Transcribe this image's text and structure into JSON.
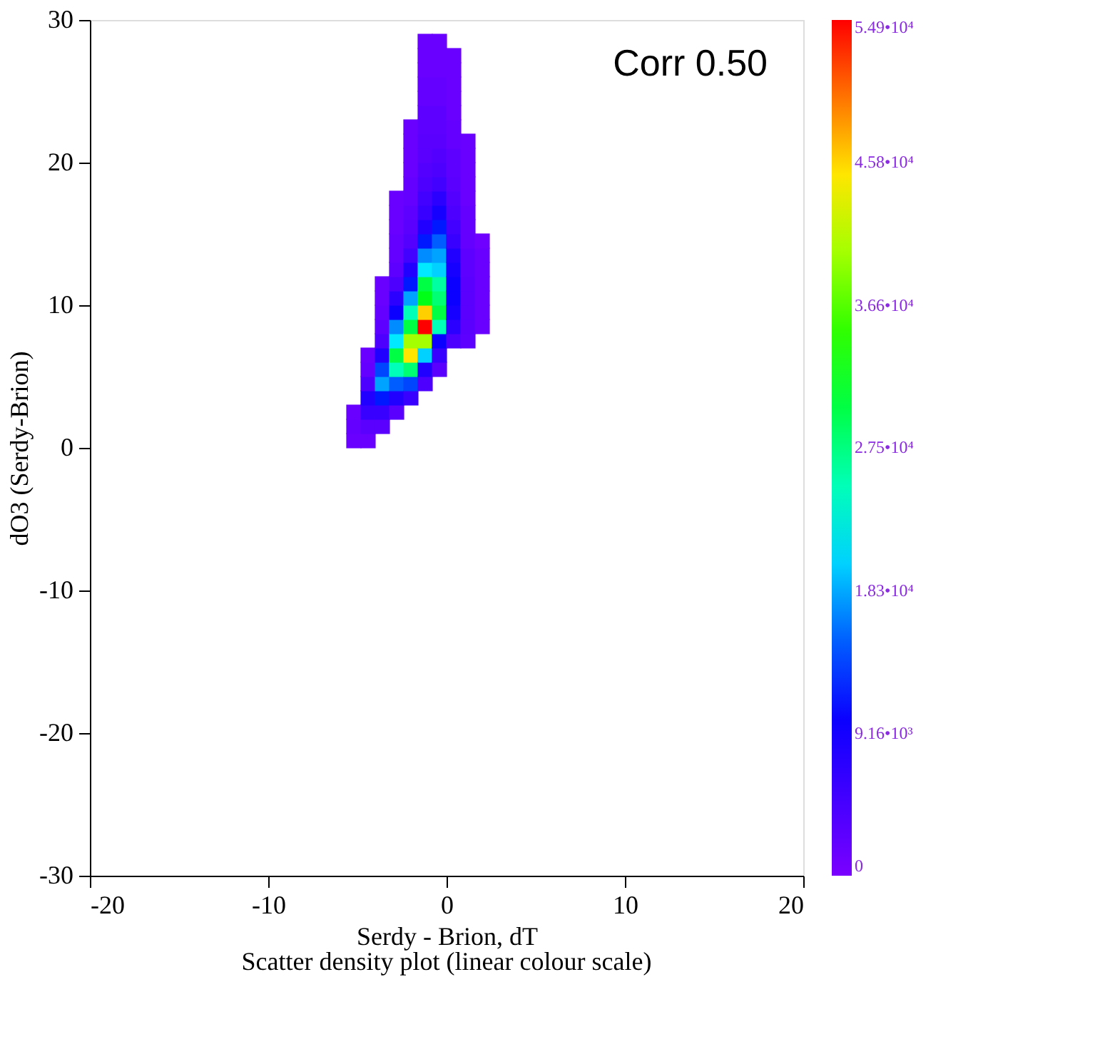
{
  "chart_data": {
    "type": "scatter",
    "xlabel": "Serdy - Brion, dT",
    "ylabel": "dO3 (Serdy-Brion)",
    "annotations": [
      "Corr 0.50",
      "Scatter density plot (linear colour scale)"
    ],
    "xlim": [
      -20,
      20
    ],
    "xticks": [
      -20,
      -10,
      0,
      10,
      20
    ],
    "ylim": [
      -30,
      30
    ],
    "yticks": [
      -30,
      -20,
      -10,
      0,
      10,
      20,
      30
    ],
    "clim": [
      0,
      54900
    ],
    "cticks": [
      0,
      {
        "value": 9160,
        "label": "9.16•10³"
      },
      {
        "value": 18300,
        "label": "1.83•10⁴"
      },
      {
        "value": 27500,
        "label": "2.75•10⁴"
      },
      {
        "value": 36600,
        "label": "3.66•10⁴"
      },
      {
        "value": 45800,
        "label": "4.58•10⁴"
      },
      {
        "value": 54900,
        "label": "5.49•10⁴"
      }
    ],
    "marker": "square",
    "grid": false,
    "series": [
      {
        "x": [
          -5.2,
          -5.2,
          -5.2,
          -4.4,
          -4.4,
          -4.4,
          -4.4,
          -4.4,
          -4.4,
          -4.4,
          -3.6,
          -3.6,
          -3.6,
          -3.6,
          -3.6,
          -3.6,
          -3.6,
          -3.6,
          -3.6,
          -3.6,
          -3.6,
          -2.8,
          -2.8,
          -2.8,
          -2.8,
          -2.8,
          -2.8,
          -2.8,
          -2.8,
          -2.8,
          -2.8,
          -2.8,
          -2.8,
          -2.8,
          -2.8,
          -2.8,
          -2.8,
          -2.0,
          -2.0,
          -2.0,
          -2.0,
          -2.0,
          -2.0,
          -2.0,
          -2.0,
          -2.0,
          -2.0,
          -2.0,
          -2.0,
          -2.0,
          -2.0,
          -2.0,
          -2.0,
          -2.0,
          -2.0,
          -2.0,
          -2.0,
          -1.2,
          -1.2,
          -1.2,
          -1.2,
          -1.2,
          -1.2,
          -1.2,
          -1.2,
          -1.2,
          -1.2,
          -1.2,
          -1.2,
          -1.2,
          -1.2,
          -1.2,
          -1.2,
          -1.2,
          -1.2,
          -1.2,
          -1.2,
          -1.2,
          -1.2,
          -1.2,
          -1.2,
          -1.2,
          -0.4,
          -0.4,
          -0.4,
          -0.4,
          -0.4,
          -0.4,
          -0.4,
          -0.4,
          -0.4,
          -0.4,
          -0.4,
          -0.4,
          -0.4,
          -0.4,
          -0.4,
          -0.4,
          -0.4,
          -0.4,
          -0.4,
          -0.4,
          -0.4,
          -0.4,
          -0.4,
          -0.4,
          0.4,
          0.4,
          0.4,
          0.4,
          0.4,
          0.4,
          0.4,
          0.4,
          0.4,
          0.4,
          0.4,
          0.4,
          0.4,
          0.4,
          0.4,
          0.4,
          0.4,
          0.4,
          0.4,
          0.4,
          0.4,
          1.2,
          1.2,
          1.2,
          1.2,
          1.2,
          1.2,
          1.2,
          1.2,
          1.2,
          1.2,
          1.2,
          1.2,
          1.2,
          1.2,
          1.2,
          2.0,
          2.0,
          2.0,
          2.0,
          2.0,
          2.0,
          2.0
        ],
        "values": [
          0.5,
          1.5,
          2.5,
          0.5,
          1.5,
          2.5,
          3.5,
          4.5,
          5.5,
          6.5,
          1.5,
          2.5,
          3.5,
          4.5,
          5.5,
          6.5,
          7.5,
          8.5,
          9.5,
          10.5,
          11.5,
          2.5,
          3.5,
          4.5,
          5.5,
          6.5,
          7.5,
          8.5,
          9.5,
          10.5,
          11.5,
          12.5,
          13.5,
          14.5,
          15.5,
          16.5,
          17.5,
          3.5,
          4.5,
          5.5,
          6.5,
          7.5,
          8.5,
          9.5,
          10.5,
          11.5,
          12.5,
          13.5,
          14.5,
          15.5,
          16.5,
          17.5,
          18.5,
          19.5,
          20.5,
          21.5,
          22.5,
          4.5,
          5.5,
          6.5,
          7.5,
          8.5,
          9.5,
          10.5,
          11.5,
          12.5,
          13.5,
          14.5,
          15.5,
          16.5,
          17.5,
          18.5,
          19.5,
          20.5,
          21.5,
          22.5,
          23.5,
          24.5,
          25.5,
          26.5,
          27.5,
          28.5,
          5.5,
          6.5,
          7.5,
          8.5,
          9.5,
          10.5,
          11.5,
          12.5,
          13.5,
          14.5,
          15.5,
          16.5,
          17.5,
          18.5,
          19.5,
          20.5,
          21.5,
          22.5,
          23.5,
          24.5,
          25.5,
          26.5,
          27.5,
          28.5,
          7.5,
          8.5,
          9.5,
          10.5,
          11.5,
          12.5,
          13.5,
          14.5,
          15.5,
          16.5,
          17.5,
          18.5,
          19.5,
          20.5,
          21.5,
          22.5,
          23.5,
          24.5,
          25.5,
          26.5,
          27.5,
          7.5,
          8.5,
          9.5,
          10.5,
          11.5,
          12.5,
          13.5,
          14.5,
          15.5,
          16.5,
          17.5,
          18.5,
          19.5,
          20.5,
          21.5,
          8.5,
          9.5,
          10.5,
          11.5,
          12.5,
          13.5,
          14.5
        ],
        "cvalues": [
          1500,
          2000,
          1500,
          1500,
          3000,
          6000,
          8000,
          4000,
          2000,
          1500,
          3000,
          6000,
          12000,
          18000,
          14000,
          8000,
          4000,
          2500,
          2000,
          1500,
          1500,
          3000,
          8000,
          15000,
          25000,
          30000,
          21000,
          17000,
          10000,
          7000,
          4000,
          2500,
          2000,
          2000,
          1500,
          1500,
          1500,
          6000,
          14000,
          28000,
          45000,
          40000,
          30000,
          25000,
          18000,
          12000,
          8000,
          5000,
          3500,
          3000,
          2500,
          2000,
          2000,
          1500,
          1500,
          1500,
          1500,
          4000,
          8000,
          20000,
          40000,
          54900,
          46000,
          32000,
          30000,
          21000,
          17000,
          12000,
          8000,
          6000,
          5000,
          4000,
          3500,
          3000,
          3000,
          2500,
          2500,
          2000,
          2000,
          1500,
          1500,
          1500,
          3000,
          6000,
          10000,
          25000,
          30000,
          28000,
          26000,
          20000,
          18000,
          15000,
          12000,
          9000,
          7000,
          5000,
          4000,
          3500,
          3000,
          2500,
          2500,
          2000,
          2000,
          1500,
          1500,
          1500,
          4000,
          7000,
          9000,
          10000,
          10000,
          9000,
          8000,
          6000,
          5000,
          4000,
          3500,
          3000,
          2500,
          2500,
          2000,
          2000,
          1500,
          1500,
          1500,
          1500,
          1500,
          2500,
          3000,
          3000,
          3000,
          3000,
          2500,
          2500,
          2000,
          2000,
          2000,
          1500,
          1500,
          1500,
          1500,
          1500,
          1500,
          1500,
          1500,
          1500,
          1500,
          1500,
          1000
        ]
      }
    ]
  }
}
